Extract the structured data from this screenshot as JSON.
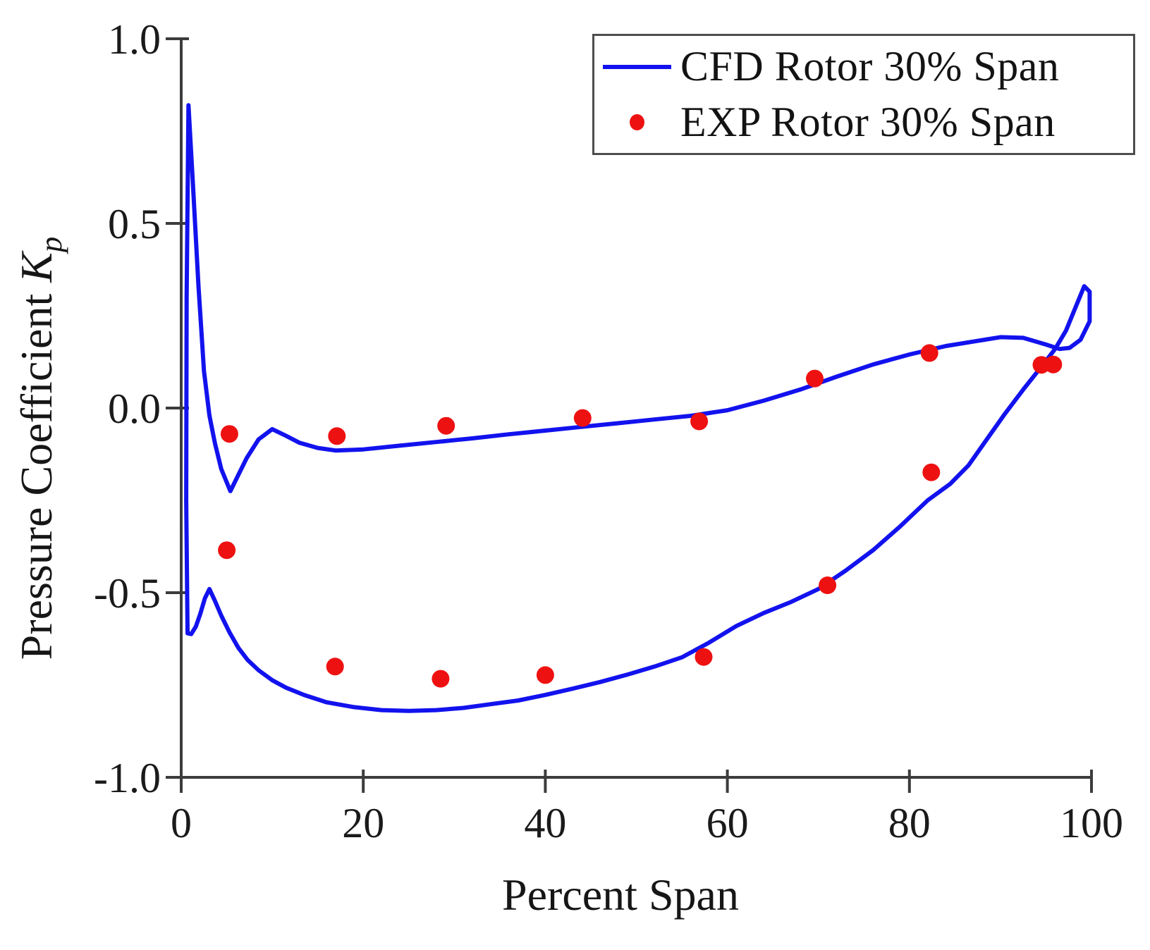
{
  "figure": {
    "background": "#ffffff",
    "axis_color": "#3c3c3c",
    "text_color": "#1a1a1a"
  },
  "legend": {
    "position": "top-right",
    "items": [
      {
        "label": "CFD Rotor 30% Span",
        "marker": "line",
        "color": "#1212ee"
      },
      {
        "label": "EXP Rotor 30% Span",
        "marker": "dot",
        "color": "#ee1111"
      }
    ]
  },
  "chart_data": {
    "type": "line",
    "title": "",
    "xlabel": "Percent Span",
    "ylabel": "Pressure Coefficient Kp",
    "ylabel_prefix": "Pressure Coefficient ",
    "ylabel_symbol": "K",
    "ylabel_subscript": "p",
    "xlim": [
      0,
      100
    ],
    "ylim": [
      -1.0,
      1.0
    ],
    "grid": false,
    "legend_position": "top-right",
    "x_ticks": [
      {
        "v": 0,
        "label": "0"
      },
      {
        "v": 20,
        "label": "20"
      },
      {
        "v": 40,
        "label": "40"
      },
      {
        "v": 60,
        "label": "60"
      },
      {
        "v": 80,
        "label": "80"
      },
      {
        "v": 100,
        "label": "100"
      }
    ],
    "y_ticks": [
      {
        "v": 1.0,
        "label": "1.0"
      },
      {
        "v": 0.5,
        "label": "0.5"
      },
      {
        "v": 0.0,
        "label": "0.0"
      },
      {
        "v": -0.5,
        "label": "-0.5"
      },
      {
        "v": -1.0,
        "label": "-1.0"
      }
    ],
    "series": [
      {
        "name": "CFD Rotor 30% Span",
        "type": "line",
        "color": "#1212ee",
        "stroke_width": 6,
        "points": [
          [
            0.7,
            -0.61
          ],
          [
            0.55,
            -0.25
          ],
          [
            0.6,
            0.3
          ],
          [
            0.8,
            0.82
          ],
          [
            1.3,
            0.6
          ],
          [
            1.9,
            0.33
          ],
          [
            2.5,
            0.1
          ],
          [
            3.1,
            -0.02
          ],
          [
            3.7,
            -0.095
          ],
          [
            4.4,
            -0.165
          ],
          [
            5.4,
            -0.225
          ],
          [
            6.2,
            -0.185
          ],
          [
            7.2,
            -0.135
          ],
          [
            8.5,
            -0.085
          ],
          [
            10,
            -0.057
          ],
          [
            11.5,
            -0.075
          ],
          [
            13,
            -0.094
          ],
          [
            15,
            -0.108
          ],
          [
            17,
            -0.115
          ],
          [
            20,
            -0.112
          ],
          [
            24,
            -0.102
          ],
          [
            28,
            -0.092
          ],
          [
            32,
            -0.082
          ],
          [
            36,
            -0.071
          ],
          [
            40,
            -0.061
          ],
          [
            44,
            -0.051
          ],
          [
            48,
            -0.041
          ],
          [
            52,
            -0.031
          ],
          [
            56,
            -0.021
          ],
          [
            60,
            -0.006
          ],
          [
            64,
            0.02
          ],
          [
            68,
            0.05
          ],
          [
            72,
            0.085
          ],
          [
            76,
            0.118
          ],
          [
            80,
            0.145
          ],
          [
            84,
            0.168
          ],
          [
            87,
            0.18
          ],
          [
            90,
            0.192
          ],
          [
            92.5,
            0.19
          ],
          [
            95,
            0.172
          ],
          [
            96.5,
            0.16
          ],
          [
            97.6,
            0.163
          ],
          [
            98.8,
            0.185
          ],
          [
            99.8,
            0.235
          ],
          [
            99.8,
            0.315
          ],
          [
            99.2,
            0.33
          ],
          [
            97.2,
            0.21
          ],
          [
            96,
            0.16
          ],
          [
            94.5,
            0.112
          ],
          [
            92.5,
            0.05
          ],
          [
            90.5,
            -0.015
          ],
          [
            88.5,
            -0.085
          ],
          [
            86.5,
            -0.155
          ],
          [
            84.5,
            -0.205
          ],
          [
            82,
            -0.25
          ],
          [
            79,
            -0.32
          ],
          [
            76,
            -0.385
          ],
          [
            73,
            -0.44
          ],
          [
            70,
            -0.49
          ],
          [
            67,
            -0.525
          ],
          [
            64,
            -0.555
          ],
          [
            61,
            -0.59
          ],
          [
            58,
            -0.635
          ],
          [
            55,
            -0.675
          ],
          [
            52,
            -0.7
          ],
          [
            49,
            -0.722
          ],
          [
            46,
            -0.742
          ],
          [
            43,
            -0.76
          ],
          [
            40,
            -0.777
          ],
          [
            37,
            -0.792
          ],
          [
            34,
            -0.802
          ],
          [
            31,
            -0.812
          ],
          [
            28,
            -0.818
          ],
          [
            25,
            -0.82
          ],
          [
            22,
            -0.818
          ],
          [
            19,
            -0.81
          ],
          [
            16,
            -0.797
          ],
          [
            13.5,
            -0.777
          ],
          [
            11.5,
            -0.757
          ],
          [
            10,
            -0.737
          ],
          [
            8.5,
            -0.71
          ],
          [
            7.3,
            -0.682
          ],
          [
            6.3,
            -0.65
          ],
          [
            5.3,
            -0.607
          ],
          [
            4.4,
            -0.562
          ],
          [
            3.7,
            -0.522
          ],
          [
            3.1,
            -0.49
          ],
          [
            2.6,
            -0.515
          ],
          [
            2.1,
            -0.557
          ],
          [
            1.6,
            -0.592
          ],
          [
            1.1,
            -0.612
          ],
          [
            0.7,
            -0.61
          ]
        ]
      },
      {
        "name": "EXP Rotor 30% Span",
        "type": "scatter",
        "color": "#ee1111",
        "marker_radius": 12.5,
        "points": [
          [
            5.3,
            -0.07
          ],
          [
            17.1,
            -0.076
          ],
          [
            29.1,
            -0.048
          ],
          [
            44.1,
            -0.027
          ],
          [
            56.9,
            -0.036
          ],
          [
            69.6,
            0.08
          ],
          [
            82.2,
            0.149
          ],
          [
            94.5,
            0.117
          ],
          [
            95.8,
            0.118
          ],
          [
            5.0,
            -0.385
          ],
          [
            16.9,
            -0.7
          ],
          [
            28.5,
            -0.733
          ],
          [
            40.0,
            -0.723
          ],
          [
            57.4,
            -0.674
          ],
          [
            71.0,
            -0.48
          ],
          [
            82.4,
            -0.174
          ]
        ]
      }
    ]
  }
}
